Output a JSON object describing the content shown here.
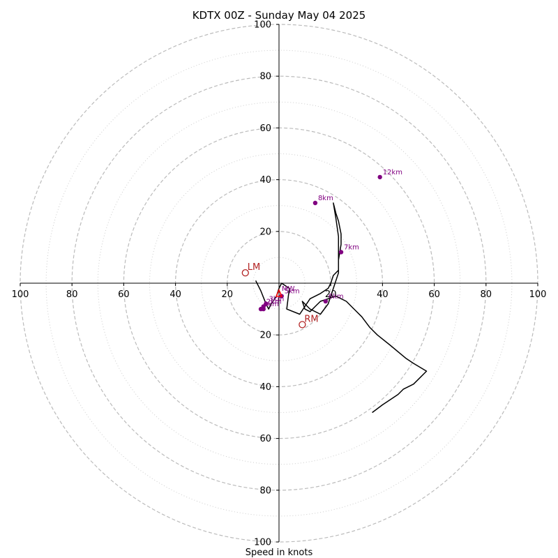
{
  "chart_data": {
    "type": "line",
    "title": "KDTX 00Z - Sunday May 04 2025",
    "xlabel": "Speed in knots",
    "ylabel": "",
    "xlim": [
      -100,
      100
    ],
    "ylim": [
      -100,
      100
    ],
    "major_rings": [
      20,
      40,
      60,
      80,
      100
    ],
    "minor_rings": [
      10,
      30,
      50,
      70,
      90
    ],
    "ticks": [
      {
        "v": -100,
        "label": "100"
      },
      {
        "v": -80,
        "label": "80"
      },
      {
        "v": -60,
        "label": "60"
      },
      {
        "v": -40,
        "label": "40"
      },
      {
        "v": -20,
        "label": "20"
      },
      {
        "v": 20,
        "label": "20"
      },
      {
        "v": 40,
        "label": "40"
      },
      {
        "v": 60,
        "label": "60"
      },
      {
        "v": 80,
        "label": "80"
      },
      {
        "v": 100,
        "label": "100"
      }
    ],
    "hodograph": {
      "x": [
        -9,
        -7,
        -5,
        -4,
        -3,
        -1,
        0,
        1,
        4,
        3,
        8,
        12,
        16,
        19,
        20,
        21,
        23,
        23,
        24,
        24,
        23,
        22,
        21,
        22,
        23,
        23,
        23,
        20,
        19,
        16,
        12,
        9,
        10,
        12,
        14,
        16,
        19,
        22,
        26,
        29,
        32,
        35,
        38,
        43,
        49,
        52,
        57,
        54,
        52,
        48,
        46,
        43,
        40,
        36
      ],
      "y": [
        1,
        -3,
        -8,
        -10,
        -8,
        -5,
        -2,
        0,
        -2,
        -10,
        -12,
        -6,
        -4,
        -2,
        0,
        3,
        5,
        9,
        15,
        19,
        24,
        27,
        31,
        25,
        18,
        10,
        4,
        -5,
        -8,
        -12,
        -10,
        -7,
        -10,
        -11,
        -9,
        -7,
        -6,
        -5,
        -7,
        -10,
        -13,
        -17,
        -20,
        -24,
        -29,
        -31,
        -34,
        -37,
        -39,
        -41,
        -43,
        -45,
        -47,
        -50
      ],
      "color": "#000000"
    },
    "height_markers": [
      {
        "label": "1km",
        "x": -7,
        "y": -10
      },
      {
        "label": "2km",
        "x": -6,
        "y": -9
      },
      {
        "label": "3km",
        "x": -5,
        "y": -8
      },
      {
        "label": "5km",
        "x": 1,
        "y": -5
      },
      {
        "label": "6km",
        "x": 18,
        "y": -7
      },
      {
        "label": "7km",
        "x": 24,
        "y": 12
      },
      {
        "label": "8km",
        "x": 14,
        "y": 31
      },
      {
        "label": "12km",
        "x": 39,
        "y": 41
      },
      {
        "label": "",
        "x": -6,
        "y": -10
      },
      {
        "label": "",
        "x": -5,
        "y": -8
      }
    ],
    "storm_motion": [
      {
        "label": "LM",
        "x": -13,
        "y": 4
      },
      {
        "label": "RM",
        "x": 9,
        "y": -16
      },
      {
        "label": "MW",
        "x": 0,
        "y": -4
      }
    ],
    "colors": {
      "grid": "#bbbbbb",
      "minor_grid": "#cccccc",
      "hodograph": "#000000",
      "marker": "#800080",
      "motion": "#b22222",
      "mean_wind": "#ff0000"
    }
  }
}
